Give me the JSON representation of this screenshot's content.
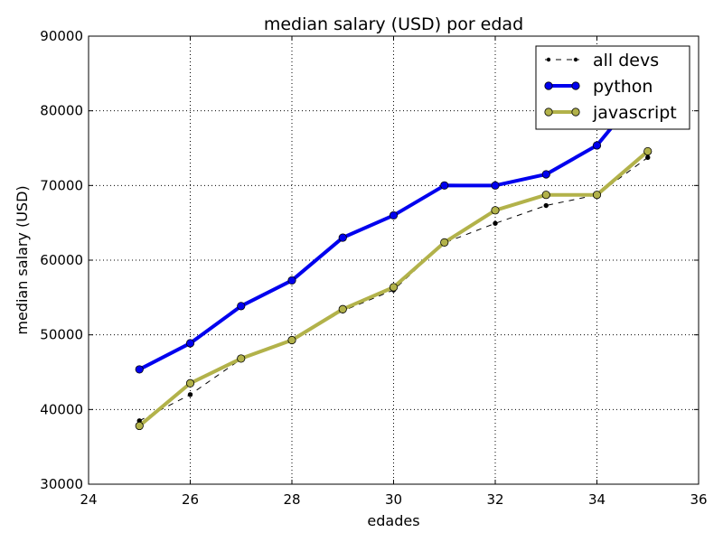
{
  "chart_data": {
    "type": "line",
    "title": "median salary (USD) por edad",
    "xlabel": "edades",
    "ylabel": "median salary (USD)",
    "xlim": [
      24,
      36
    ],
    "ylim": [
      30000,
      90000
    ],
    "xticks": [
      "24",
      "26",
      "28",
      "30",
      "32",
      "34",
      "36"
    ],
    "yticks": [
      "30000",
      "40000",
      "50000",
      "60000",
      "70000",
      "80000",
      "90000"
    ],
    "grid": true,
    "legend_position": "top-right",
    "x": [
      25,
      26,
      27,
      28,
      29,
      30,
      31,
      32,
      33,
      34,
      35
    ],
    "series": [
      {
        "name": "all devs",
        "values": [
          38496,
          42000,
          46752,
          49320,
          53200,
          56000,
          62316,
          64928,
          67317,
          68748,
          73752
        ],
        "color": "#000000",
        "style": "dashed",
        "marker": "point"
      },
      {
        "name": "python",
        "values": [
          45372,
          48876,
          53850,
          57287,
          63016,
          65998,
          70003,
          70000,
          71496,
          75370,
          83640
        ],
        "color": "#0000ee",
        "style": "solid",
        "marker": "circle"
      },
      {
        "name": "javascript",
        "values": [
          37810,
          43515,
          46823,
          49293,
          53437,
          56373,
          62375,
          66674,
          68745,
          68746,
          74583
        ],
        "color": "#b2b24a",
        "style": "solid",
        "marker": "circle"
      }
    ]
  }
}
